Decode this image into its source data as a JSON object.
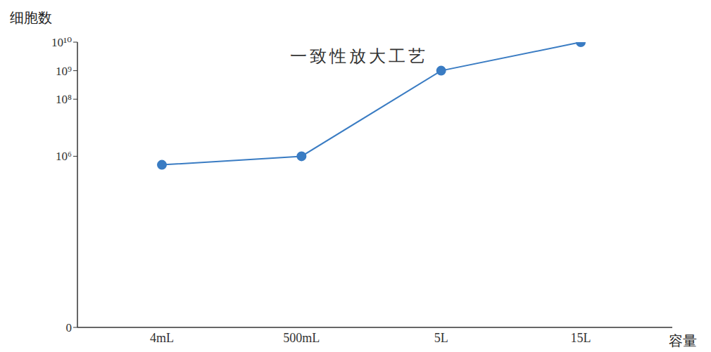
{
  "chart_data": {
    "type": "line",
    "title": "一致性放大工艺",
    "x_label": "容量",
    "y_label": "细胞数",
    "categories": [
      "4mL",
      "500mL",
      "5L",
      "15L"
    ],
    "values": [
      500000,
      1000000,
      1000000000,
      10000000000
    ],
    "color": "#3a7cc3",
    "marker": "circle",
    "log": "y",
    "ylim": [
      0,
      10000000000
    ],
    "yticks": [
      0,
      {
        "value": 1000000,
        "label": "10⁶"
      },
      {
        "value": 100000000,
        "label": "10⁸"
      },
      {
        "value": 1000000000,
        "label": "10⁹"
      },
      {
        "value": 10000000000,
        "label": "10¹⁰"
      }
    ],
    "grid": false
  }
}
